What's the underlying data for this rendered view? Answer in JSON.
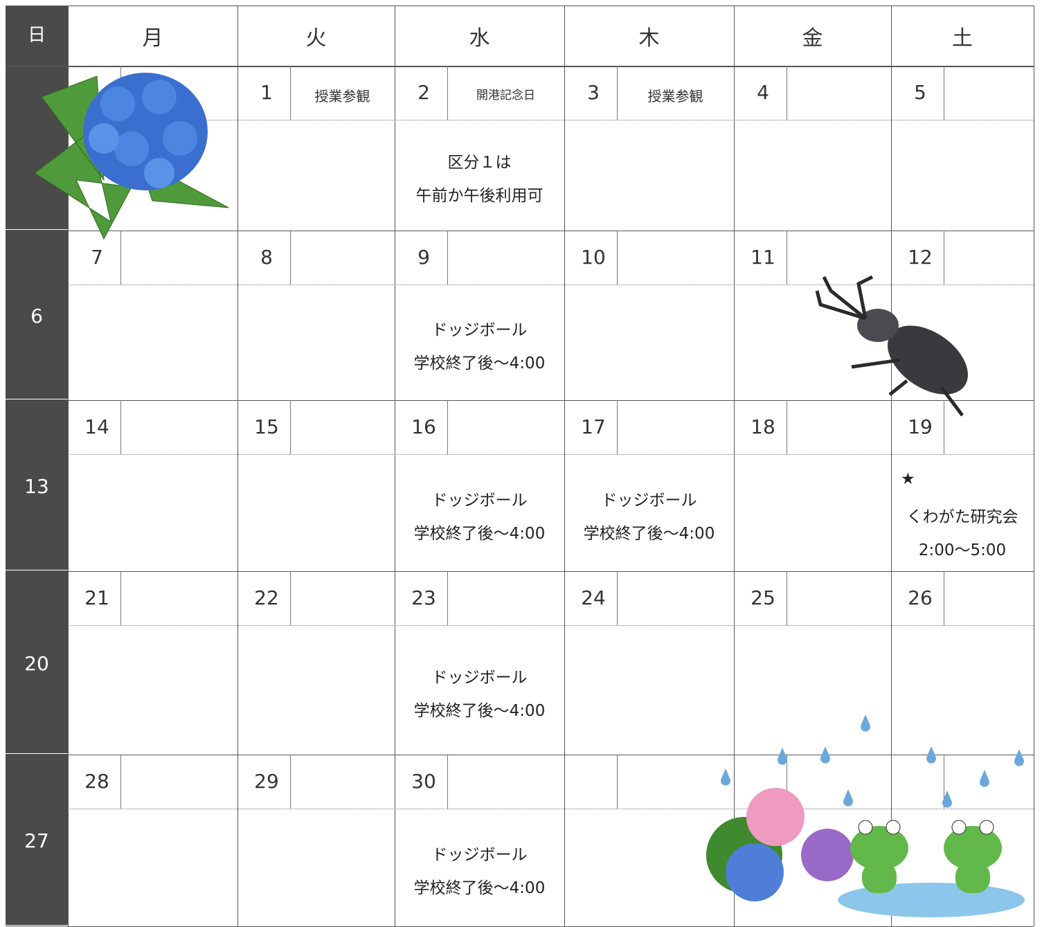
{
  "header": {
    "days": [
      "日",
      "月",
      "火",
      "水",
      "木",
      "金",
      "土"
    ]
  },
  "weeks": [
    {
      "sunday": null,
      "days": [
        null,
        {
          "date": 1,
          "note": "授業参観"
        },
        {
          "date": 2,
          "note": "開港記念日",
          "event": [
            "区分１は",
            "午前か午後利用可"
          ]
        },
        {
          "date": 3,
          "note": "授業参観"
        },
        {
          "date": 4
        },
        {
          "date": 5
        }
      ]
    },
    {
      "sunday": 6,
      "days": [
        {
          "date": 7
        },
        {
          "date": 8
        },
        {
          "date": 9,
          "event": [
            "ドッジボール",
            "学校終了後～4:00"
          ]
        },
        {
          "date": 10
        },
        {
          "date": 11
        },
        {
          "date": 12
        }
      ]
    },
    {
      "sunday": 13,
      "days": [
        {
          "date": 14
        },
        {
          "date": 15
        },
        {
          "date": 16,
          "event": [
            "ドッジボール",
            "学校終了後～4:00"
          ]
        },
        {
          "date": 17,
          "event": [
            "ドッジボール",
            "学校終了後～4:00"
          ]
        },
        {
          "date": 18
        },
        {
          "date": 19,
          "event": [
            "★",
            "くわがた研究会",
            "2:00～5:00"
          ]
        }
      ]
    },
    {
      "sunday": 20,
      "days": [
        {
          "date": 21
        },
        {
          "date": 22
        },
        {
          "date": 23,
          "event": [
            "ドッジボール",
            "学校終了後～4:00"
          ]
        },
        {
          "date": 24
        },
        {
          "date": 25
        },
        {
          "date": 26
        }
      ]
    },
    {
      "sunday": 27,
      "days": [
        {
          "date": 28
        },
        {
          "date": 29
        },
        {
          "date": 30,
          "event": [
            "ドッジボール",
            "学校終了後～4:00"
          ]
        },
        null,
        null,
        null
      ]
    }
  ]
}
